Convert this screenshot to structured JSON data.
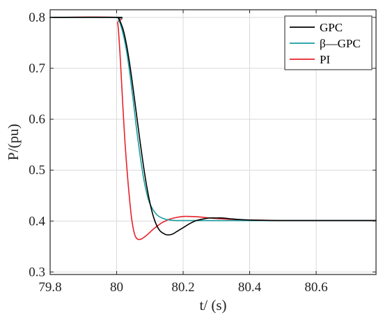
{
  "chart_data": {
    "type": "line",
    "title": "",
    "xlabel": "t/ (s)",
    "ylabel": "P/(pu)",
    "xlim": [
      79.8,
      80.78
    ],
    "ylim": [
      0.295,
      0.815
    ],
    "xticks": [
      79.8,
      80.0,
      80.2,
      80.4,
      80.6
    ],
    "xtick_labels": [
      "79.8",
      "80",
      "80.2",
      "80.4",
      "80.6"
    ],
    "yticks": [
      0.3,
      0.4,
      0.5,
      0.6,
      0.7,
      0.8
    ],
    "ytick_labels": [
      "0.3",
      "0.4",
      "0.5",
      "0.6",
      "0.7",
      "0.8"
    ],
    "grid": true,
    "legend_position": "top-right",
    "series": [
      {
        "name": "GPC",
        "color": "#000000",
        "x": [
          79.8,
          80.0,
          80.005,
          80.01,
          80.02,
          80.03,
          80.04,
          80.05,
          80.06,
          80.07,
          80.08,
          80.09,
          80.1,
          80.11,
          80.12,
          80.13,
          80.14,
          80.15,
          80.16,
          80.17,
          80.18,
          80.2,
          80.22,
          80.24,
          80.26,
          80.28,
          80.3,
          80.32,
          80.35,
          80.4,
          80.5,
          80.6,
          80.78
        ],
        "y": [
          0.8,
          0.8,
          0.799,
          0.793,
          0.775,
          0.745,
          0.705,
          0.658,
          0.608,
          0.558,
          0.511,
          0.47,
          0.436,
          0.41,
          0.392,
          0.381,
          0.376,
          0.373,
          0.373,
          0.375,
          0.379,
          0.387,
          0.395,
          0.401,
          0.404,
          0.406,
          0.406,
          0.406,
          0.404,
          0.402,
          0.401,
          0.401,
          0.401
        ]
      },
      {
        "name": "β—GPC",
        "color": "#1a9da0",
        "x": [
          79.8,
          80.0,
          80.005,
          80.01,
          80.02,
          80.03,
          80.04,
          80.05,
          80.06,
          80.07,
          80.08,
          80.09,
          80.1,
          80.12,
          80.14,
          80.16,
          80.18,
          80.2,
          80.25,
          80.3,
          80.4,
          80.6,
          80.78
        ],
        "y": [
          0.8,
          0.8,
          0.797,
          0.789,
          0.766,
          0.733,
          0.688,
          0.636,
          0.58,
          0.531,
          0.488,
          0.456,
          0.434,
          0.413,
          0.405,
          0.402,
          0.401,
          0.401,
          0.401,
          0.401,
          0.401,
          0.401,
          0.401
        ]
      },
      {
        "name": "PI",
        "color": "#e8202a",
        "x": [
          79.8,
          80.0,
          80.003,
          80.006,
          80.01,
          80.015,
          80.02,
          80.025,
          80.03,
          80.035,
          80.04,
          80.045,
          80.05,
          80.055,
          80.06,
          80.065,
          80.07,
          80.075,
          80.08,
          80.09,
          80.1,
          80.11,
          80.12,
          80.13,
          80.14,
          80.15,
          80.16,
          80.18,
          80.2,
          80.22,
          80.25,
          80.28,
          80.3,
          80.35,
          80.4,
          80.5,
          80.6,
          80.78
        ],
        "y": [
          0.8,
          0.8,
          0.79,
          0.77,
          0.73,
          0.67,
          0.61,
          0.555,
          0.51,
          0.47,
          0.435,
          0.405,
          0.385,
          0.372,
          0.366,
          0.364,
          0.364,
          0.365,
          0.367,
          0.372,
          0.378,
          0.384,
          0.389,
          0.394,
          0.398,
          0.401,
          0.404,
          0.407,
          0.409,
          0.409,
          0.408,
          0.406,
          0.405,
          0.403,
          0.402,
          0.401,
          0.401,
          0.401
        ]
      }
    ]
  }
}
